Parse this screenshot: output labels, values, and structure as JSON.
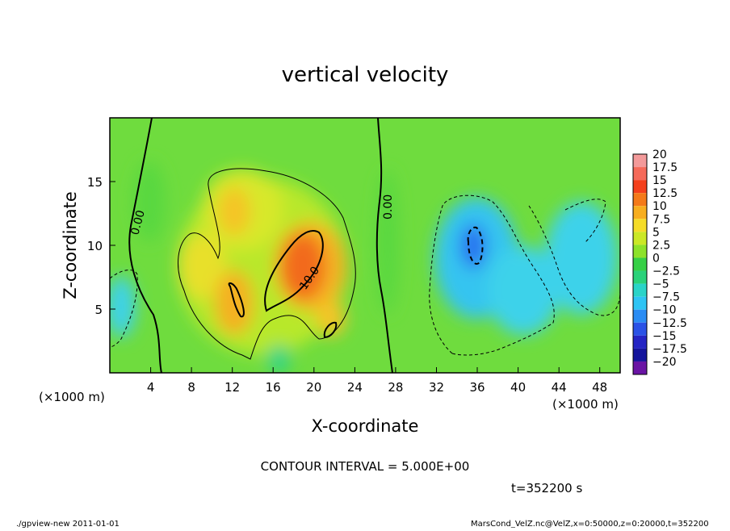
{
  "chart_data": {
    "type": "heatmap",
    "title": "vertical velocity",
    "xlabel": "X-coordinate",
    "ylabel": "Z-coordinate",
    "x_unit": "(×1000 m)",
    "y_unit": "(×1000 m)",
    "xlim": [
      0,
      50
    ],
    "ylim": [
      0,
      20
    ],
    "x_ticks": [
      "4",
      "8",
      "12",
      "16",
      "20",
      "24",
      "28",
      "32",
      "36",
      "40",
      "44",
      "48"
    ],
    "y_ticks": [
      "5",
      "10",
      "15"
    ],
    "colorbar": {
      "labels": [
        "20",
        "17.5",
        "15",
        "12.5",
        "10",
        "7.5",
        "5",
        "2.5",
        "0",
        "−2.5",
        "−5",
        "−7.5",
        "−10",
        "−12.5",
        "−15",
        "−17.5",
        "−20"
      ],
      "colors": [
        "#f39a9a",
        "#f56a5a",
        "#f4401c",
        "#f47a1a",
        "#f7ae20",
        "#f5dc28",
        "#cbe826",
        "#8de22a",
        "#36d046",
        "#2ad27a",
        "#2ad4c8",
        "#2ec4f4",
        "#2a8cf4",
        "#2a52e6",
        "#2424c4",
        "#14149c",
        "#6a14a4"
      ]
    },
    "contour_labels": [
      "0.00",
      "0.00",
      "10.0"
    ],
    "contour_interval_text": "CONTOUR INTERVAL = 5.000E+00",
    "time_text": "t=352200 s",
    "features": [
      {
        "type": "updraft",
        "x": 19,
        "z": 8.5,
        "peak": 12.5
      },
      {
        "type": "updraft",
        "x": 12.5,
        "z": 12.5,
        "peak": 7.5
      },
      {
        "type": "updraft",
        "x": 13,
        "z": 6,
        "peak": 7.5
      },
      {
        "type": "updraft",
        "x": 21.5,
        "z": 4,
        "peak": 7.5
      },
      {
        "type": "downdraft",
        "x": 35.5,
        "z": 9.5,
        "peak": -10
      },
      {
        "type": "downdraft",
        "x": 42,
        "z": 6,
        "peak": -7.5
      },
      {
        "type": "downdraft",
        "x": 47,
        "z": 8,
        "peak": -7.5
      },
      {
        "type": "downdraft",
        "x": 0.5,
        "z": 6,
        "peak": -7.5
      }
    ]
  },
  "footer": {
    "left": "./gpview-new   2011-01-01",
    "right": "MarsCond_VelZ.nc@VelZ,x=0:50000,z=0:20000,t=352200"
  }
}
